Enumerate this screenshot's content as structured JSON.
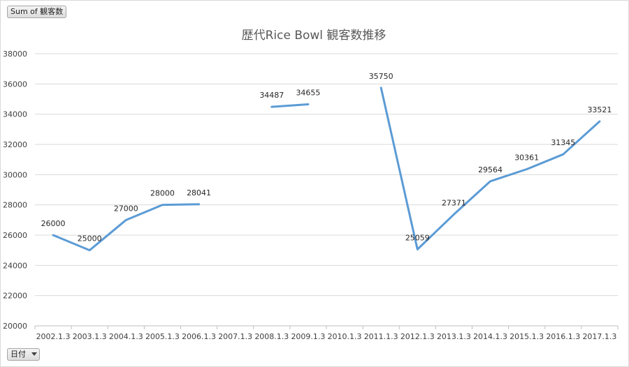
{
  "header": {
    "values_field_label": "Sum of 観客数"
  },
  "footer": {
    "axis_field_label": "日付"
  },
  "colors": {
    "series": "#5b9bd5",
    "gridline": "#d9d9d9",
    "title": "#595959"
  },
  "icons": {
    "axis_field_dropdown": "chevron-down-icon"
  },
  "chart_data": {
    "type": "line",
    "title": "歴代Rice Bowl 観客数推移",
    "xlabel": "",
    "ylabel": "",
    "ylim": [
      20000,
      38000
    ],
    "yticks": [
      20000,
      22000,
      24000,
      26000,
      28000,
      30000,
      32000,
      34000,
      36000,
      38000
    ],
    "grid": true,
    "legend": "none",
    "categories": [
      "2002.1.3",
      "2003.1.3",
      "2004.1.3",
      "2005.1.3",
      "2006.1.3",
      "2007.1.3",
      "2008.1.3",
      "2009.1.3",
      "2010.1.3",
      "2011.1.3",
      "2012.1.3",
      "2013.1.3",
      "2014.1.3",
      "2015.1.3",
      "2016.1.3",
      "2017.1.3"
    ],
    "series": [
      {
        "values": [
          26000,
          25000,
          27000,
          28000,
          28041,
          null,
          34487,
          34655,
          null,
          35750,
          25059,
          27371,
          29564,
          30361,
          31345,
          33521
        ]
      }
    ],
    "data_labels": true
  }
}
